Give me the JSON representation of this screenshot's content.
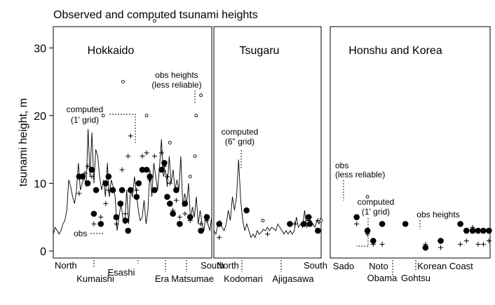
{
  "chart_data": {
    "type": "scatter",
    "title": "Observed and computed tsunami heights",
    "ylabel": "tsunami height, m",
    "ylim": [
      0,
      35
    ],
    "yticks": [
      0,
      10,
      20,
      30
    ],
    "panels": [
      {
        "title": "Hokkaido",
        "x_end_labels": [
          "North",
          "South"
        ],
        "locations": [
          "Kumaishi",
          "Esashi",
          "Era",
          "Matsumae"
        ],
        "annotations": [
          "computed\n(1' grid)",
          "obs heights\n(less reliable)",
          "obs"
        ],
        "series": [
          {
            "kind": "line",
            "values": [
              2.5,
              3.5,
              3.0,
              2.5,
              3.0,
              4.0,
              4.5,
              6.0,
              10.5,
              9.5,
              8.0,
              7.0,
              9.0,
              13.0,
              9.0,
              10.0,
              11.0,
              9.5,
              18.0,
              11.0,
              17.5,
              10.0,
              15.0,
              14.0,
              11.0,
              9.0,
              10.5,
              8.0,
              13.0,
              8.0,
              10.5,
              9.5,
              8.0,
              3.0,
              5.0,
              7.0,
              5.0,
              4.0,
              9.0,
              4.0,
              9.0,
              8.0,
              11.0,
              8.5,
              6.0,
              4.5,
              5.0,
              7.5,
              4.0,
              6.0,
              12.0,
              8.0,
              13.0,
              11.0,
              9.0,
              12.5,
              16.5,
              11.0,
              12.0,
              9.5,
              14.0,
              10.0,
              12.0,
              9.0,
              10.5,
              9.0,
              14.0,
              6.5,
              8.5,
              7.0,
              10.0,
              4.5,
              6.5,
              5.0,
              8.0,
              4.0,
              6.0,
              4.0,
              3.0,
              5.5,
              4.0,
              3.0,
              5.0
            ]
          },
          {
            "kind": "obs",
            "points": [
              [
                0.163,
                11
              ],
              [
                0.185,
                11
              ],
              [
                0.217,
                10
              ],
              [
                0.243,
                12
              ],
              [
                0.256,
                5.5
              ],
              [
                0.27,
                9
              ],
              [
                0.3,
                4
              ],
              [
                0.331,
                10
              ],
              [
                0.349,
                11
              ],
              [
                0.376,
                9
              ],
              [
                0.398,
                5
              ],
              [
                0.424,
                7
              ],
              [
                0.434,
                9
              ],
              [
                0.455,
                4.5
              ],
              [
                0.472,
                3
              ],
              [
                0.488,
                9
              ],
              [
                0.526,
                8
              ],
              [
                0.539,
                10
              ],
              [
                0.562,
                12
              ],
              [
                0.589,
                12
              ],
              [
                0.609,
                11
              ],
              [
                0.639,
                9
              ],
              [
                0.684,
                12
              ],
              [
                0.701,
                13
              ],
              [
                0.719,
                8
              ],
              [
                0.736,
                7
              ],
              [
                0.755,
                5.5
              ],
              [
                0.776,
                9
              ],
              [
                0.798,
                4
              ],
              [
                0.831,
                7
              ],
              [
                0.864,
                5
              ],
              [
                0.932,
                3
              ],
              [
                0.969,
                5
              ]
            ]
          },
          {
            "kind": "computed",
            "points": [
              [
                0.163,
                8.5
              ],
              [
                0.2,
                11.5
              ],
              [
                0.217,
                12.5
              ],
              [
                0.243,
                11
              ],
              [
                0.256,
                4
              ],
              [
                0.3,
                5
              ],
              [
                0.331,
                7
              ],
              [
                0.349,
                9
              ],
              [
                0.398,
                4
              ],
              [
                0.434,
                12
              ],
              [
                0.455,
                5.5
              ],
              [
                0.472,
                14
              ],
              [
                0.488,
                17
              ],
              [
                0.526,
                9
              ],
              [
                0.562,
                14
              ],
              [
                0.589,
                14.5
              ],
              [
                0.609,
                10.5
              ],
              [
                0.639,
                14
              ],
              [
                0.684,
                14.5
              ],
              [
                0.701,
                12.5
              ],
              [
                0.719,
                11
              ],
              [
                0.736,
                10
              ],
              [
                0.755,
                6
              ],
              [
                0.776,
                7.5
              ],
              [
                0.798,
                5
              ],
              [
                0.831,
                5.5
              ],
              [
                0.864,
                4.5
              ],
              [
                0.932,
                4
              ],
              [
                0.969,
                4.5
              ]
            ]
          },
          {
            "kind": "obs_less_reliable",
            "points": [
              [
                0.315,
                20
              ],
              [
                0.44,
                25
              ],
              [
                0.589,
                20
              ],
              [
                0.639,
                34
              ],
              [
                0.736,
                16
              ],
              [
                0.864,
                11
              ],
              [
                0.894,
                14
              ],
              [
                0.902,
                20
              ],
              [
                0.932,
                23
              ]
            ]
          }
        ]
      },
      {
        "title": "Tsugaru",
        "x_end_labels": [
          "North",
          "South"
        ],
        "locations": [
          "Kodomari",
          "Ajigasawa"
        ],
        "annotations": [
          "computed\n(6\" grid)"
        ],
        "series": [
          {
            "kind": "line",
            "values": [
              3.0,
              2.5,
              4.0,
              4.5,
              3.5,
              3.0,
              4.0,
              6.0,
              4.5,
              8.0,
              6.0,
              8.0,
              13.5,
              7.5,
              4.5,
              3.0,
              4.0,
              3.0,
              2.0,
              2.5,
              2.0,
              3.0,
              2.5,
              2.8,
              3.2,
              3.0,
              3.5,
              3.0,
              3.5,
              3.3,
              3.0,
              4.0,
              3.5,
              3.0,
              2.5,
              3.0,
              2.5,
              3.0,
              2.5,
              3.0,
              5.0,
              3.5,
              4.0,
              3.5,
              6.0,
              3.5,
              4.0,
              4.5,
              4.0,
              3.5,
              4.5,
              4.0,
              5.0
            ]
          },
          {
            "kind": "obs",
            "points": [
              [
                0.05,
                4
              ],
              [
                0.305,
                6
              ],
              [
                0.709,
                4
              ],
              [
                0.839,
                4
              ],
              [
                0.883,
                5
              ],
              [
                0.895,
                4
              ],
              [
                0.97,
                3
              ]
            ]
          },
          {
            "kind": "computed",
            "points": [
              [
                0.05,
                2
              ],
              [
                0.5,
                2.5
              ],
              [
                0.755,
                4
              ],
              [
                0.883,
                4.5
              ],
              [
                0.895,
                5
              ],
              [
                0.97,
                4.5
              ]
            ]
          },
          {
            "kind": "obs_less_reliable",
            "points": [
              [
                0.457,
                4.5
              ],
              [
                1.0,
                4.5
              ]
            ]
          }
        ]
      },
      {
        "title": "Honshu and Korea",
        "x_end_labels": [],
        "locations": [
          "Sado",
          "Noto",
          "Obama",
          "Gohtsu",
          "Korean Coast"
        ],
        "annotations": [
          "obs\n(less reliable)",
          "computed\n(1' grid)",
          "obs heights"
        ],
        "series": [
          {
            "kind": "obs",
            "points": [
              [
                0.165,
                5
              ],
              [
                0.233,
                3
              ],
              [
                0.269,
                1.5
              ],
              [
                0.325,
                4
              ],
              [
                0.47,
                4
              ],
              [
                0.596,
                0.5
              ],
              [
                0.691,
                1.5
              ],
              [
                0.814,
                4
              ],
              [
                0.852,
                3
              ],
              [
                0.891,
                3
              ],
              [
                0.925,
                3
              ],
              [
                0.958,
                3
              ],
              [
                0.993,
                3
              ]
            ]
          },
          {
            "kind": "computed",
            "points": [
              [
                0.165,
                4
              ],
              [
                0.233,
                2.5
              ],
              [
                0.269,
                1
              ],
              [
                0.325,
                1
              ],
              [
                0.596,
                1
              ],
              [
                0.691,
                0.5
              ],
              [
                0.814,
                1
              ],
              [
                0.852,
                1.5
              ],
              [
                0.891,
                3.5
              ],
              [
                0.925,
                1
              ],
              [
                0.958,
                1
              ],
              [
                0.993,
                1.5
              ]
            ]
          },
          {
            "kind": "obs_less_reliable",
            "points": [
              [
                0.233,
                8
              ]
            ]
          }
        ]
      }
    ]
  }
}
